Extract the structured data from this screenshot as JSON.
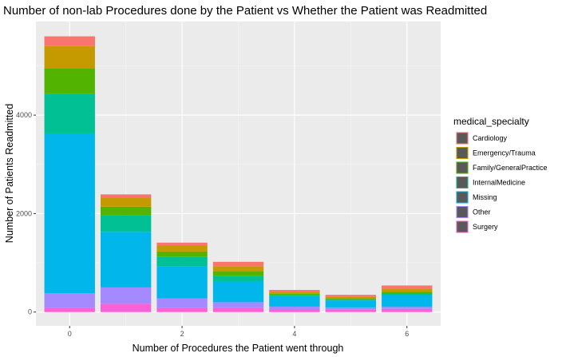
{
  "chart_data": {
    "type": "bar",
    "stacked": true,
    "title": "Number of non-lab Procedures done by the Patient vs Whether the Patient was Readmitted",
    "xlabel": "Number of Procedures the Patient went through",
    "ylabel": "Number of Patients Readmitted",
    "x": [
      0,
      1,
      2,
      3,
      4,
      5,
      6
    ],
    "x_ticks": [
      0,
      2,
      4,
      6
    ],
    "y_ticks": [
      0,
      2000,
      4000
    ],
    "xlim": [
      -0.6,
      6.6
    ],
    "ylim": [
      -280,
      5900
    ],
    "grid": true,
    "legend": {
      "title": "medical_specialty",
      "position": "right"
    },
    "series": [
      {
        "name": "Cardiology",
        "color": "#F8766D",
        "values": [
          200,
          60,
          60,
          90,
          40,
          35,
          65
        ]
      },
      {
        "name": "Emergency/Trauma",
        "color": "#C49A00",
        "values": [
          450,
          190,
          120,
          100,
          40,
          30,
          60
        ]
      },
      {
        "name": "Family/GeneralPractice",
        "color": "#53B400",
        "values": [
          520,
          180,
          110,
          90,
          30,
          25,
          30
        ]
      },
      {
        "name": "InternalMedicine",
        "color": "#00C094",
        "values": [
          800,
          330,
          190,
          120,
          30,
          25,
          40
        ]
      },
      {
        "name": "Missing",
        "color": "#00B6EB",
        "values": [
          3250,
          1130,
          650,
          420,
          200,
          140,
          240
        ]
      },
      {
        "name": "Other",
        "color": "#A58AFF",
        "values": [
          290,
          330,
          190,
          110,
          50,
          40,
          40
        ]
      },
      {
        "name": "Surgery",
        "color": "#FB61D7",
        "values": [
          90,
          170,
          90,
          90,
          60,
          55,
          65
        ]
      }
    ]
  }
}
